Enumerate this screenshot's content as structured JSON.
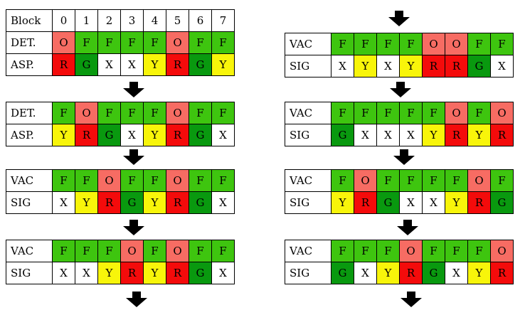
{
  "colors": {
    "F": "#3ec50f",
    "O": "#f76c63",
    "R": "#f40b0b",
    "G": "#09990f",
    "Y": "#f8f50a",
    "X": "#ffffff"
  },
  "left": [
    {
      "rows": [
        {
          "label": "Block",
          "cells": [
            "0",
            "1",
            "2",
            "3",
            "4",
            "5",
            "6",
            "7"
          ]
        },
        {
          "label": "DET.",
          "cells": [
            "O",
            "F",
            "F",
            "F",
            "F",
            "O",
            "F",
            "F"
          ]
        },
        {
          "label": "ASP.",
          "cells": [
            "R",
            "G",
            "X",
            "X",
            "Y",
            "R",
            "G",
            "Y"
          ]
        }
      ]
    },
    {
      "rows": [
        {
          "label": "DET.",
          "cells": [
            "F",
            "O",
            "F",
            "F",
            "F",
            "O",
            "F",
            "F"
          ]
        },
        {
          "label": "ASP.",
          "cells": [
            "Y",
            "R",
            "G",
            "X",
            "Y",
            "R",
            "G",
            "X"
          ]
        }
      ]
    },
    {
      "rows": [
        {
          "label": "VAC",
          "cells": [
            "F",
            "F",
            "O",
            "F",
            "F",
            "O",
            "F",
            "F"
          ]
        },
        {
          "label": "SIG",
          "cells": [
            "X",
            "Y",
            "R",
            "G",
            "Y",
            "R",
            "G",
            "X"
          ]
        }
      ]
    },
    {
      "rows": [
        {
          "label": "VAC",
          "cells": [
            "F",
            "F",
            "F",
            "O",
            "F",
            "O",
            "F",
            "F"
          ]
        },
        {
          "label": "SIG",
          "cells": [
            "X",
            "X",
            "Y",
            "R",
            "Y",
            "R",
            "G",
            "X"
          ]
        }
      ]
    }
  ],
  "right": [
    {
      "rows": [
        {
          "label": "VAC",
          "cells": [
            "F",
            "F",
            "F",
            "F",
            "O",
            "O",
            "F",
            "F"
          ]
        },
        {
          "label": "SIG",
          "cells": [
            "X",
            "Y",
            "X",
            "Y",
            "R",
            "R",
            "G",
            "X"
          ]
        }
      ]
    },
    {
      "rows": [
        {
          "label": "VAC",
          "cells": [
            "F",
            "F",
            "F",
            "F",
            "F",
            "O",
            "F",
            "O"
          ]
        },
        {
          "label": "SIG",
          "cells": [
            "G",
            "X",
            "X",
            "X",
            "Y",
            "R",
            "Y",
            "R"
          ]
        }
      ]
    },
    {
      "rows": [
        {
          "label": "VAC",
          "cells": [
            "F",
            "O",
            "F",
            "F",
            "F",
            "F",
            "O",
            "F"
          ]
        },
        {
          "label": "SIG",
          "cells": [
            "Y",
            "R",
            "G",
            "X",
            "X",
            "Y",
            "R",
            "G"
          ]
        }
      ]
    },
    {
      "rows": [
        {
          "label": "VAC",
          "cells": [
            "F",
            "F",
            "F",
            "O",
            "F",
            "F",
            "F",
            "O"
          ]
        },
        {
          "label": "SIG",
          "cells": [
            "G",
            "X",
            "Y",
            "R",
            "G",
            "X",
            "Y",
            "R"
          ]
        }
      ]
    }
  ]
}
